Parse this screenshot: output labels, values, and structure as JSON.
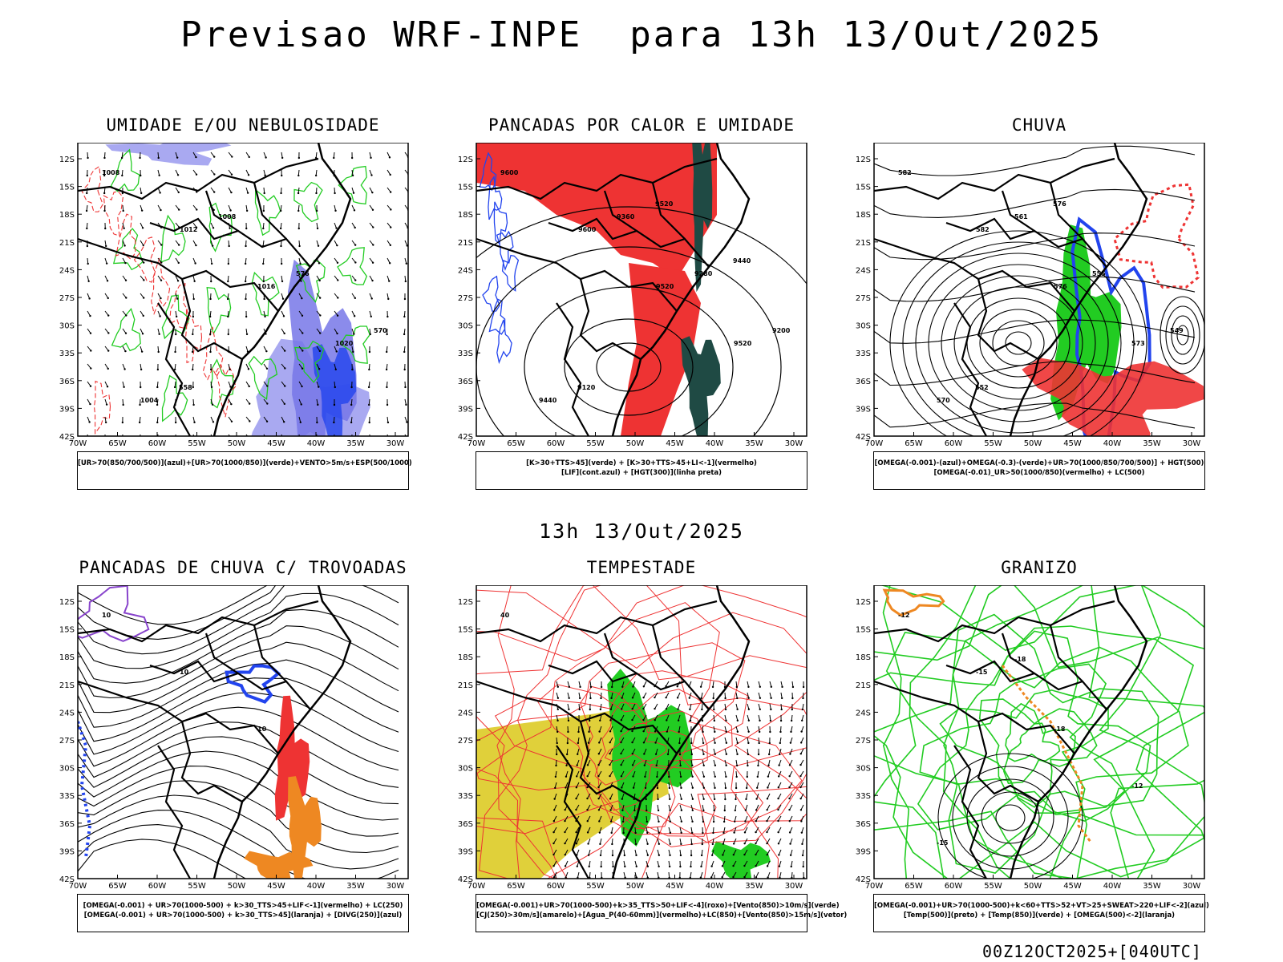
{
  "header": {
    "title": "Previsao WRF-INPE  para 13h 13/Out/2025"
  },
  "middle": {
    "title": "13h 13/Out/2025"
  },
  "footer": {
    "run": "00Z12OCT2025+[040UTC]"
  },
  "axes": {
    "lat_labels": [
      "12S",
      "15S",
      "18S",
      "21S",
      "24S",
      "27S",
      "30S",
      "33S",
      "36S",
      "39S",
      "42S"
    ],
    "lon_labels": [
      "70W",
      "65W",
      "60W",
      "55W",
      "50W",
      "45W",
      "40W",
      "35W",
      "30W"
    ]
  },
  "colors": {
    "green": "#22cc22",
    "red": "#ee3333",
    "blue": "#2244ee",
    "lavender": "#a0a0f0",
    "darkgreen": "#1f4a44",
    "yellow": "#e0d03a",
    "orange": "#ee8822",
    "purple": "#8844cc"
  },
  "panels": [
    {
      "id": "umidade",
      "title": "UMIDADE E/OU NEBULOSIDADE",
      "legend": [
        "[UR>70(850/700/500)](azul)+[UR>70(1000/850)](verde)+VENTO>5m/s+ESP(500/1000)"
      ],
      "labels": [
        "1008",
        "1012",
        "1016",
        "1020",
        "1004",
        "1008",
        "576",
        "570",
        "558"
      ]
    },
    {
      "id": "calor",
      "title": "PANCADAS POR CALOR E UMIDADE",
      "legend": [
        "[K>30+TTS>45](verde) + [K>30+TTS>45+LI<-1](vermelho)",
        "[LIF](cont.azul) + [HGT(300)](linha preta)"
      ],
      "labels": [
        "9600",
        "9600",
        "9520",
        "9520",
        "9440",
        "9360",
        "9280",
        "9200",
        "9120",
        "9520",
        "9440"
      ]
    },
    {
      "id": "chuva",
      "title": "CHUVA",
      "legend": [
        "[OMEGA(-0.001)-(azul)+OMEGA(-0.3)-(verde)+UR>70(1000/850/700/500)] + HGT(500)",
        "[OMEGA(-0.01)_UR>50(1000/850)(vermelho) + LC(500)"
      ],
      "labels": [
        "582",
        "582",
        "576",
        "573",
        "570",
        "561",
        "555",
        "549",
        "552",
        "576"
      ]
    },
    {
      "id": "trovoadas",
      "title": "PANCADAS DE CHUVA C/ TROVOADAS",
      "legend": [
        "[OMEGA(-0.001) + UR>70(1000-500) + k>30_TTS>45+LIF<-1](vermelho) + LC(250)",
        "[OMEGA(-0.001) + UR>70(1000-500) + k>30_TTS>45](laranja) + [DIVG(250)](azul)"
      ],
      "labels": [
        "10",
        "10",
        "10"
      ]
    },
    {
      "id": "tempestade",
      "title": "TEMPESTADE",
      "legend": [
        "[OMEGA(-0.001)+UR>70(1000-500)+k>35_TTS>50+LIF<-4](roxo)+[Vento(850)>10m/s](verde)",
        "[CJ(250)>30m/s](amarelo)+[Agua_P(40-60mm)](vermelho)+LC(850)+[Vento(850)>15m/s](vetor)"
      ],
      "labels": [
        "40"
      ]
    },
    {
      "id": "granizo",
      "title": "GRANIZO",
      "legend": [
        "[OMEGA(-0.001)+UR>70(1000-500)+k<60+TTS>52+VT>25+SWEAT>220+LIF<-2](azul)",
        "[Temp(500)](preto) + [Temp(850)](verde) + [OMEGA(500)<-2](laranja)"
      ],
      "labels": [
        "-12",
        "-15",
        "-18",
        "-12",
        "-15",
        "-18"
      ]
    }
  ]
}
